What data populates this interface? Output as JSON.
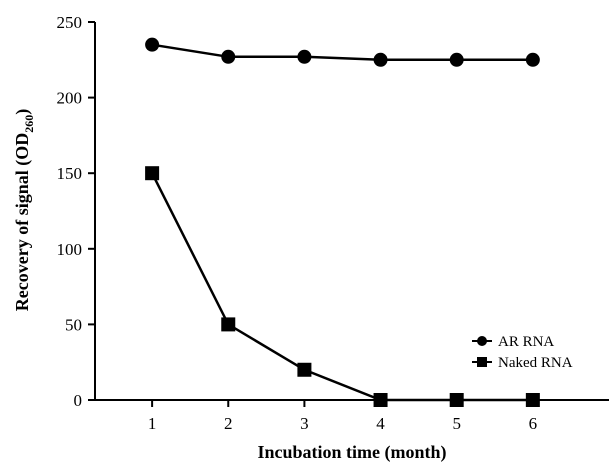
{
  "chart_data": {
    "type": "line",
    "x": [
      1,
      2,
      3,
      4,
      5,
      6
    ],
    "series": [
      {
        "name": "AR RNA",
        "marker": "circle",
        "values": [
          235,
          227,
          227,
          225,
          225,
          225
        ]
      },
      {
        "name": "Naked RNA",
        "marker": "square",
        "values": [
          150,
          50,
          20,
          0,
          0,
          0
        ]
      }
    ],
    "xlabel": "Incubation time (month)",
    "ylabel_main": "Recovery of signal (OD",
    "ylabel_sub": "260",
    "ylabel_end": ")",
    "xticks": [
      "1",
      "2",
      "3",
      "4",
      "5",
      "6"
    ],
    "yticks": [
      "0",
      "50",
      "100",
      "150",
      "200",
      "250"
    ],
    "xlim": [
      0.25,
      7
    ],
    "ylim": [
      0,
      250
    ],
    "grid": false,
    "legend_position": "lower-right",
    "line_color": "#000000"
  }
}
